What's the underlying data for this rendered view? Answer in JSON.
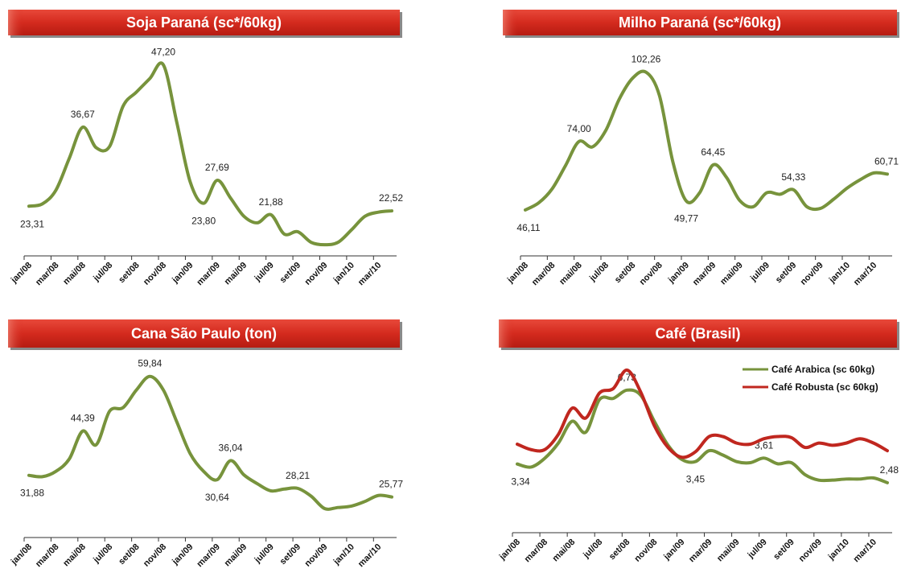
{
  "chart_data": [
    {
      "type": "line",
      "title": "Soja Paraná (sc*/60kg)",
      "categories": [
        "jan/08",
        null,
        "mar/08",
        null,
        "mai/08",
        null,
        "jul/08",
        null,
        "set/08",
        null,
        "nov/08",
        null,
        "jan/09",
        null,
        "mar/09",
        null,
        "mai/09",
        null,
        "jul/09",
        null,
        "set/09",
        null,
        "nov/09",
        null,
        "jan/10",
        null,
        "mar/10",
        null
      ],
      "values": [
        23.31,
        23.7,
        26.0,
        31.4,
        36.67,
        33.2,
        33.4,
        40.2,
        42.6,
        44.9,
        47.2,
        37.5,
        27.4,
        23.8,
        27.69,
        24.7,
        21.6,
        20.5,
        21.88,
        18.6,
        19.0,
        17.2,
        16.8,
        17.2,
        19.3,
        21.6,
        22.3,
        22.52
      ],
      "value_labels": [
        "23,31",
        null,
        null,
        null,
        "36,67",
        null,
        null,
        null,
        null,
        null,
        "47,20",
        null,
        null,
        "23,80",
        "27,69",
        null,
        null,
        null,
        "21,88",
        null,
        null,
        null,
        null,
        null,
        null,
        null,
        null,
        "22,52"
      ],
      "color": "#77933c",
      "ylim": [
        16,
        50
      ]
    },
    {
      "type": "line",
      "title": "Milho Paraná (sc*/60kg)",
      "categories": [
        "jan/08",
        null,
        "mar/08",
        null,
        "mai/08",
        null,
        "jul/08",
        null,
        "set/08",
        null,
        "nov/08",
        null,
        "jan/09",
        null,
        "mar/09",
        null,
        "mai/09",
        null,
        "jul/09",
        null,
        "set/09",
        null,
        "nov/09",
        null,
        "jan/10",
        null,
        "mar/10",
        null
      ],
      "values": [
        46.11,
        49.0,
        54.7,
        64.2,
        74.0,
        71.8,
        78.5,
        91.2,
        99.8,
        102.26,
        92.8,
        65.8,
        49.77,
        53.1,
        64.45,
        59.4,
        49.9,
        47.4,
        53.1,
        52.5,
        54.33,
        47.4,
        46.7,
        50.5,
        55.0,
        58.5,
        61.2,
        60.71
      ],
      "value_labels": [
        "46,11",
        null,
        null,
        null,
        "74,00",
        null,
        null,
        null,
        null,
        "102,26",
        null,
        null,
        "49,77",
        null,
        "64,45",
        null,
        null,
        null,
        null,
        null,
        "54,33",
        null,
        null,
        null,
        null,
        null,
        null,
        "60,71"
      ],
      "color": "#77933c",
      "ylim": [
        30,
        112
      ]
    },
    {
      "type": "line",
      "title": "Cana São Paulo (ton)",
      "categories": [
        "jan/08",
        null,
        "mar/08",
        null,
        "mai/08",
        null,
        "jul/08",
        null,
        "set/08",
        null,
        "nov/08",
        null,
        "jan/09",
        null,
        "mar/09",
        null,
        "mai/09",
        null,
        "jul/09",
        null,
        "set/09",
        null,
        "nov/09",
        null,
        "jan/10",
        null,
        "mar/10",
        null
      ],
      "values": [
        31.88,
        31.5,
        33.0,
        36.5,
        44.39,
        40.5,
        50.0,
        51.0,
        56.0,
        59.84,
        56.0,
        47.0,
        38.0,
        33.0,
        30.64,
        36.04,
        32.0,
        29.5,
        27.5,
        28.0,
        28.21,
        26.0,
        22.5,
        22.8,
        23.2,
        24.5,
        26.2,
        25.77
      ],
      "value_labels": [
        "31,88",
        null,
        null,
        null,
        "44,39",
        null,
        null,
        null,
        null,
        "59,84",
        null,
        null,
        null,
        null,
        "30,64",
        "36,04",
        null,
        null,
        null,
        null,
        "28,21",
        null,
        null,
        null,
        null,
        null,
        null,
        "25,77"
      ],
      "color": "#77933c",
      "ylim": [
        15,
        65
      ]
    },
    {
      "type": "line",
      "title": "Café (Brasil)",
      "categories": [
        "jan/08",
        null,
        "mar/08",
        null,
        "mai/08",
        null,
        "jul/08",
        null,
        "set/08",
        null,
        "nov/08",
        null,
        "jan/09",
        null,
        "mar/09",
        null,
        "mai/09",
        null,
        "jul/09",
        null,
        "set/09",
        null,
        "nov/09",
        null,
        "jan/10",
        null,
        "mar/10",
        null
      ],
      "series": [
        {
          "name": "Café Arabica (sc 60kg)",
          "color": "#77933c",
          "values": [
            3.34,
            3.2,
            3.6,
            4.3,
            5.3,
            4.8,
            6.3,
            6.35,
            6.73,
            6.5,
            5.3,
            4.2,
            3.55,
            3.45,
            3.95,
            3.75,
            3.45,
            3.4,
            3.61,
            3.35,
            3.4,
            2.85,
            2.6,
            2.6,
            2.65,
            2.65,
            2.7,
            2.48
          ],
          "value_labels": [
            "3,34",
            null,
            null,
            null,
            null,
            null,
            null,
            null,
            "6,73",
            null,
            null,
            null,
            null,
            "3,45",
            null,
            null,
            null,
            null,
            "3,61",
            null,
            null,
            null,
            null,
            null,
            null,
            null,
            null,
            "2,48"
          ]
        },
        {
          "name": "Café Robusta (sc 60kg)",
          "color": "#c0271f",
          "values": [
            4.25,
            4.0,
            4.0,
            4.7,
            5.9,
            5.45,
            6.6,
            6.8,
            7.65,
            6.65,
            5.1,
            4.1,
            3.65,
            3.9,
            4.6,
            4.6,
            4.3,
            4.25,
            4.5,
            4.6,
            4.55,
            4.1,
            4.3,
            4.2,
            4.3,
            4.5,
            4.3,
            3.95
          ]
        }
      ],
      "legend": "upper right",
      "ylim": [
        1,
        8.2
      ]
    }
  ]
}
